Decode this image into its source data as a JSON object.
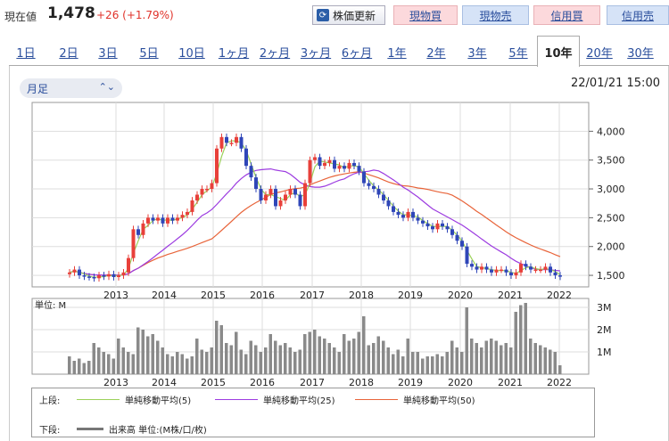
{
  "header": {
    "price_label": "現在値",
    "price": "1,478",
    "change": "+26 (+1.79%)",
    "refresh_label": "株価更新",
    "buttons": [
      {
        "label": "現物買",
        "kind": "buy"
      },
      {
        "label": "現物売",
        "kind": "sell"
      },
      {
        "label": "信用買",
        "kind": "buy"
      },
      {
        "label": "信用売",
        "kind": "sell"
      }
    ]
  },
  "tabs": [
    "1日",
    "2日",
    "3日",
    "5日",
    "10日",
    "1ヶ月",
    "2ヶ月",
    "3ヶ月",
    "6ヶ月",
    "1年",
    "2年",
    "3年",
    "5年",
    "10年",
    "20年",
    "30年"
  ],
  "active_tab": "10年",
  "period_select": "月足",
  "timestamp": "22/01/21 15:00",
  "colors": {
    "up": "#e8403a",
    "down": "#2f46b8",
    "ma5": "#9bd15a",
    "ma25": "#9c3be0",
    "ma50": "#e8643a",
    "volume": "#8a8a8a"
  },
  "chart_data": [
    {
      "type": "candlestick",
      "x_ticks": [
        "2013",
        "2014",
        "2015",
        "2016",
        "2017",
        "2018",
        "2019",
        "2020",
        "2021",
        "2022"
      ],
      "y_ticks": [
        "4,000",
        "3,500",
        "3,000",
        "2,500",
        "2,000",
        "1,500"
      ],
      "ylim": [
        1300,
        4500
      ],
      "close": [
        1550,
        1600,
        1500,
        1480,
        1470,
        1450,
        1500,
        1480,
        1520,
        1470,
        1500,
        1550,
        1800,
        2300,
        2200,
        2400,
        2500,
        2450,
        2500,
        2400,
        2500,
        2450,
        2500,
        2550,
        2600,
        2800,
        2900,
        3000,
        3000,
        3100,
        3700,
        3900,
        3800,
        3800,
        3900,
        3700,
        3400,
        3200,
        3000,
        2800,
        2900,
        3000,
        2700,
        2800,
        2900,
        3000,
        2900,
        2700,
        3100,
        3500,
        3550,
        3400,
        3450,
        3500,
        3350,
        3400,
        3350,
        3450,
        3400,
        3300,
        3100,
        3050,
        3000,
        2900,
        2800,
        2700,
        2600,
        2550,
        2500,
        2600,
        2500,
        2450,
        2400,
        2350,
        2300,
        2400,
        2350,
        2300,
        2200,
        2100,
        2000,
        1700,
        1650,
        1600,
        1650,
        1600,
        1550,
        1600,
        1600,
        1550,
        1500,
        1550,
        1700,
        1650,
        1600,
        1600,
        1600,
        1650,
        1550,
        1500,
        1478
      ],
      "ma_lines": [
        "単純移動平均(5)",
        "単純移動平均(25)",
        "単純移動平均(50)"
      ]
    },
    {
      "type": "bar",
      "y_ticks": [
        "3M",
        "2M",
        "1M"
      ],
      "ylim": [
        0,
        3.4
      ],
      "unit_label": "単位: M",
      "values": [
        0.8,
        0.6,
        0.7,
        0.5,
        0.6,
        1.4,
        1.2,
        1.0,
        0.9,
        0.7,
        1.6,
        1.2,
        1.0,
        0.9,
        2.1,
        2.0,
        1.7,
        1.8,
        1.5,
        1.2,
        0.9,
        0.8,
        1.0,
        0.9,
        0.7,
        0.8,
        1.6,
        1.1,
        1.0,
        1.2,
        2.4,
        2.2,
        1.4,
        1.3,
        1.9,
        1.1,
        0.9,
        1.5,
        1.3,
        1.0,
        1.2,
        1.8,
        1.5,
        1.3,
        1.4,
        1.2,
        1.0,
        1.1,
        1.8,
        1.9,
        2.0,
        1.7,
        1.6,
        1.4,
        1.2,
        1.0,
        1.8,
        1.5,
        1.6,
        1.9,
        2.6,
        1.3,
        1.4,
        1.7,
        1.5,
        1.2,
        0.9,
        1.1,
        0.8,
        1.6,
        1.0,
        1.0,
        0.7,
        0.8,
        0.8,
        0.9,
        0.8,
        1.0,
        1.5,
        1.2,
        1.0,
        3.0,
        1.6,
        1.4,
        1.2,
        1.5,
        1.6,
        1.5,
        1.3,
        1.4,
        1.2,
        2.8,
        3.1,
        3.2,
        1.6,
        1.4,
        1.3,
        1.2,
        1.1,
        1.0,
        0.4
      ]
    }
  ],
  "legend": {
    "upper_label": "上段:",
    "lower_label": "下段:",
    "ma5": "単純移動平均(5)",
    "ma25": "単純移動平均(25)",
    "ma50": "単純移動平均(50)",
    "volume": "出来高 単位:(M株/口/枚)"
  }
}
